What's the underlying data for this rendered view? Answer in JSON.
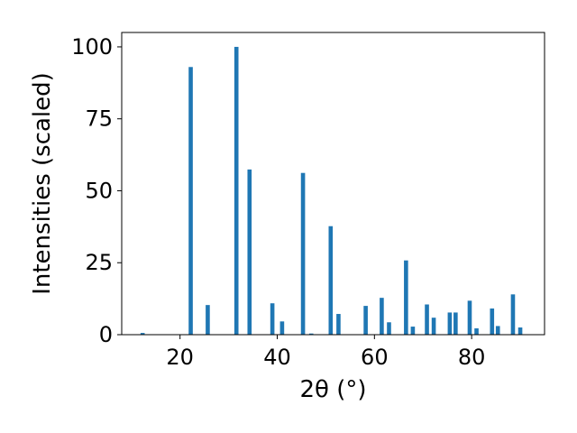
{
  "chart_data": {
    "type": "bar",
    "xlabel": "2θ (°)",
    "ylabel": "Intensities (scaled)",
    "xlim": [
      8,
      95
    ],
    "ylim": [
      0,
      105
    ],
    "xticks": [
      20,
      40,
      60,
      80
    ],
    "yticks": [
      0,
      25,
      50,
      75,
      100
    ],
    "grid": false,
    "bar_color": "#1f77b4",
    "x": [
      12.3,
      22.2,
      25.7,
      31.6,
      34.3,
      39.0,
      41.0,
      45.3,
      47.0,
      51.0,
      52.6,
      58.2,
      61.5,
      63.0,
      66.5,
      67.9,
      70.8,
      72.2,
      75.5,
      76.7,
      79.6,
      81.0,
      84.2,
      85.4,
      88.5,
      90.0
    ],
    "values": [
      0.6,
      93,
      10.3,
      100,
      57.4,
      10.9,
      4.6,
      56.2,
      0.4,
      37.7,
      7.2,
      10.0,
      12.8,
      4.3,
      25.8,
      2.8,
      10.5,
      5.9,
      7.7,
      7.7,
      11.8,
      2.2,
      9.1,
      3.0,
      14.0,
      2.5
    ]
  }
}
